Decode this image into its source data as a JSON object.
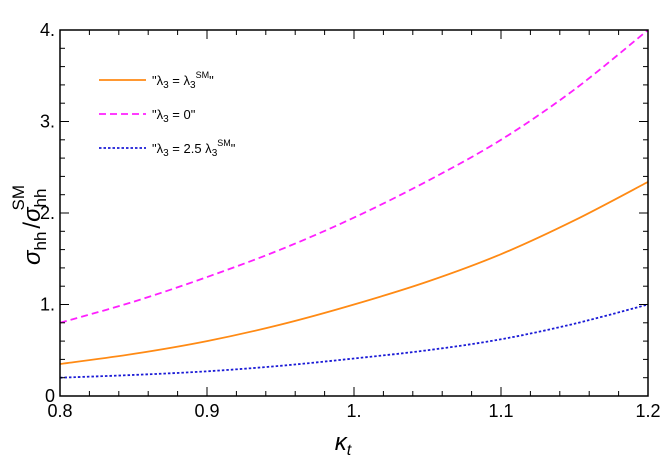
{
  "chart_data": {
    "type": "line",
    "xlabel": "κ",
    "xlabel_sub": "t",
    "ylabel_parts": {
      "sym": "σ",
      "sub": "hh",
      "sep": "/",
      "sym2": "σ",
      "sub2": "hh",
      "sup2": "SM"
    },
    "xlim": [
      0.8,
      1.2
    ],
    "ylim": [
      0,
      4
    ],
    "xticks": [
      0.8,
      0.9,
      1.0,
      1.1,
      1.2
    ],
    "xtick_labels": [
      "0.8",
      "0.9",
      "1.",
      "1.1",
      "1.2"
    ],
    "yticks": [
      0,
      1,
      2,
      3,
      4
    ],
    "ytick_labels": [
      "0",
      "1.",
      "2.",
      "3.",
      "4."
    ],
    "grid": false,
    "legend_position": "top-left",
    "series": [
      {
        "name": "\"λ3 = λ3SM\"",
        "legend": {
          "open": "\"λ",
          "sub1": "3",
          "mid": " = λ",
          "sub2": "3",
          "sup": "SM",
          "close": "\""
        },
        "color": "#ff8a14",
        "style": "solid",
        "x": [
          0.8,
          0.85,
          0.9,
          0.95,
          1.0,
          1.05,
          1.1,
          1.15,
          1.2
        ],
        "y": [
          0.35,
          0.46,
          0.6,
          0.78,
          1.0,
          1.25,
          1.55,
          1.92,
          2.34
        ]
      },
      {
        "name": "\"λ3 = 0\"",
        "legend": {
          "open": "\"λ",
          "sub1": "3",
          "mid": " = 0",
          "sub2": "",
          "sup": "",
          "close": "\""
        },
        "color": "#ff20ff",
        "style": "dashed",
        "x": [
          0.8,
          0.85,
          0.9,
          0.95,
          1.0,
          1.05,
          1.1,
          1.15,
          1.2
        ],
        "y": [
          0.8,
          1.03,
          1.3,
          1.6,
          1.95,
          2.35,
          2.8,
          3.35,
          4.0
        ]
      },
      {
        "name": "\"λ3 = 2.5 λ3SM\"",
        "legend": {
          "open": "\"λ",
          "sub1": "3",
          "mid": " = 2.5 λ",
          "sub2": "3",
          "sup": "SM",
          "close": "\""
        },
        "color": "#1a1ad6",
        "style": "dotted",
        "x": [
          0.8,
          0.85,
          0.9,
          0.95,
          1.0,
          1.05,
          1.1,
          1.15,
          1.2
        ],
        "y": [
          0.2,
          0.23,
          0.27,
          0.33,
          0.41,
          0.5,
          0.62,
          0.79,
          1.0
        ]
      }
    ]
  }
}
